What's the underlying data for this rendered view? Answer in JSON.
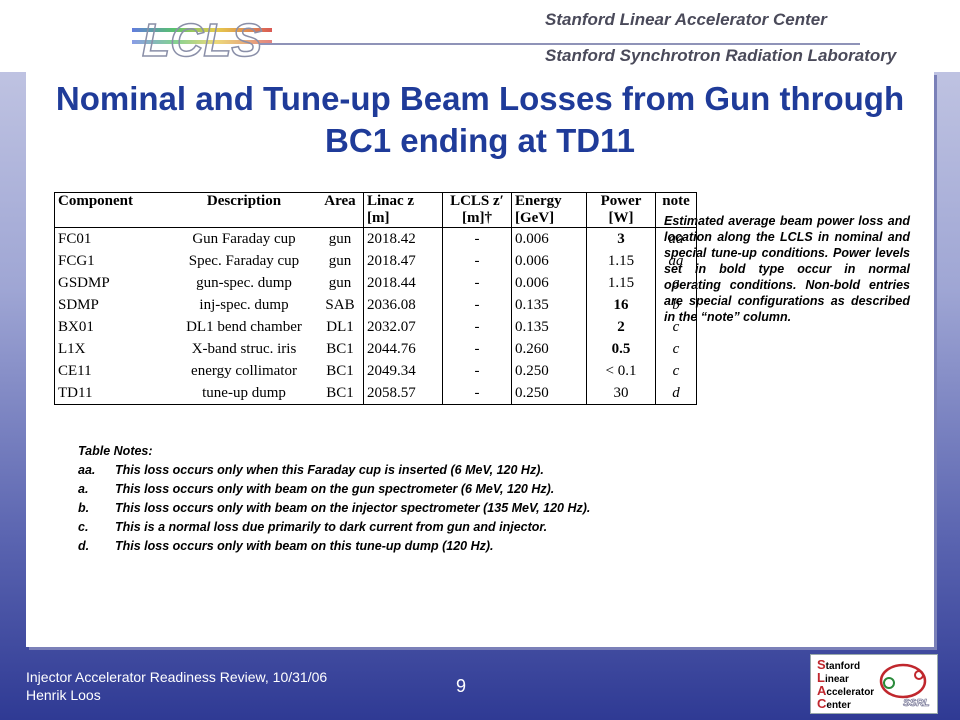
{
  "header": {
    "logo_text": "LCLS",
    "lab_line1": "Stanford Linear Accelerator Center",
    "lab_line2": "Stanford Synchrotron Radiation Laboratory"
  },
  "slide": {
    "title": "Nominal and Tune-up Beam Losses from Gun through BC1 ending at TD11",
    "table": {
      "headers": {
        "component": "Component",
        "description": "Description",
        "area": "Area",
        "linac": "Linac z [m]",
        "lcls": "LCLS z′ [m]†",
        "energy": "Energy [GeV]",
        "power": "Power [W]",
        "note": "note"
      },
      "rows": [
        {
          "component": "FC01",
          "description": "Gun Faraday cup",
          "area": "gun",
          "linac": "2018.42",
          "lcls": "-",
          "energy": "0.006",
          "power": "3",
          "note": "aa"
        },
        {
          "component": "FCG1",
          "description": "Spec. Faraday cup",
          "area": "gun",
          "linac": "2018.47",
          "lcls": "-",
          "energy": "0.006",
          "power": "1.15",
          "note": "aa"
        },
        {
          "component": "GSDMP",
          "description": "gun-spec. dump",
          "area": "gun",
          "linac": "2018.44",
          "lcls": "-",
          "energy": "0.006",
          "power": "1.15",
          "note": "a"
        },
        {
          "component": "SDMP",
          "description": "inj-spec. dump",
          "area": "SAB",
          "linac": "2036.08",
          "lcls": "-",
          "energy": "0.135",
          "power": "16",
          "note": "b"
        },
        {
          "component": "BX01",
          "description": "DL1 bend chamber",
          "area": "DL1",
          "linac": "2032.07",
          "lcls": "-",
          "energy": "0.135",
          "power": "2",
          "note": "c"
        },
        {
          "component": "L1X",
          "description": "X-band struc. iris",
          "area": "BC1",
          "linac": "2044.76",
          "lcls": "-",
          "energy": "0.260",
          "power": "0.5",
          "note": "c"
        },
        {
          "component": "CE11",
          "description": "energy collimator",
          "area": "BC1",
          "linac": "2049.34",
          "lcls": "-",
          "energy": "0.250",
          "power": "< 0.1",
          "note": "c"
        },
        {
          "component": "TD11",
          "description": "tune-up dump",
          "area": "BC1",
          "linac": "2058.57",
          "lcls": "-",
          "energy": "0.250",
          "power": "30",
          "note": "d"
        }
      ]
    },
    "caption": "Estimated average beam power loss and location along the LCLS in nominal and special tune-up conditions. Power levels set in bold type occur in normal operating conditions. Non-bold entries are special configurations as described in the “note” column.",
    "notes_title": "Table Notes:",
    "notes": [
      {
        "label": "aa.",
        "text": "This loss occurs only when this Faraday cup is inserted (6 MeV, 120 Hz)."
      },
      {
        "label": "a.",
        "text": "This loss occurs only with beam on the gun spectrometer (6 MeV, 120 Hz)."
      },
      {
        "label": "b.",
        "text": "This loss occurs only with beam on the injector spectrometer (135 MeV, 120 Hz)."
      },
      {
        "label": "c.",
        "text": "This is a normal loss due primarily to dark current from gun and injector."
      },
      {
        "label": "d.",
        "text": "This loss occurs only with beam on this tune-up dump (120 Hz)."
      }
    ]
  },
  "footer": {
    "line1": "Injector Accelerator Readiness Review, 10/31/06",
    "line2": "Henrik Loos",
    "page_number": "9",
    "slac_logo": [
      "Stanford",
      "Linear",
      "Accelerator",
      "Center"
    ],
    "ssrl_logo": "SSRL"
  }
}
